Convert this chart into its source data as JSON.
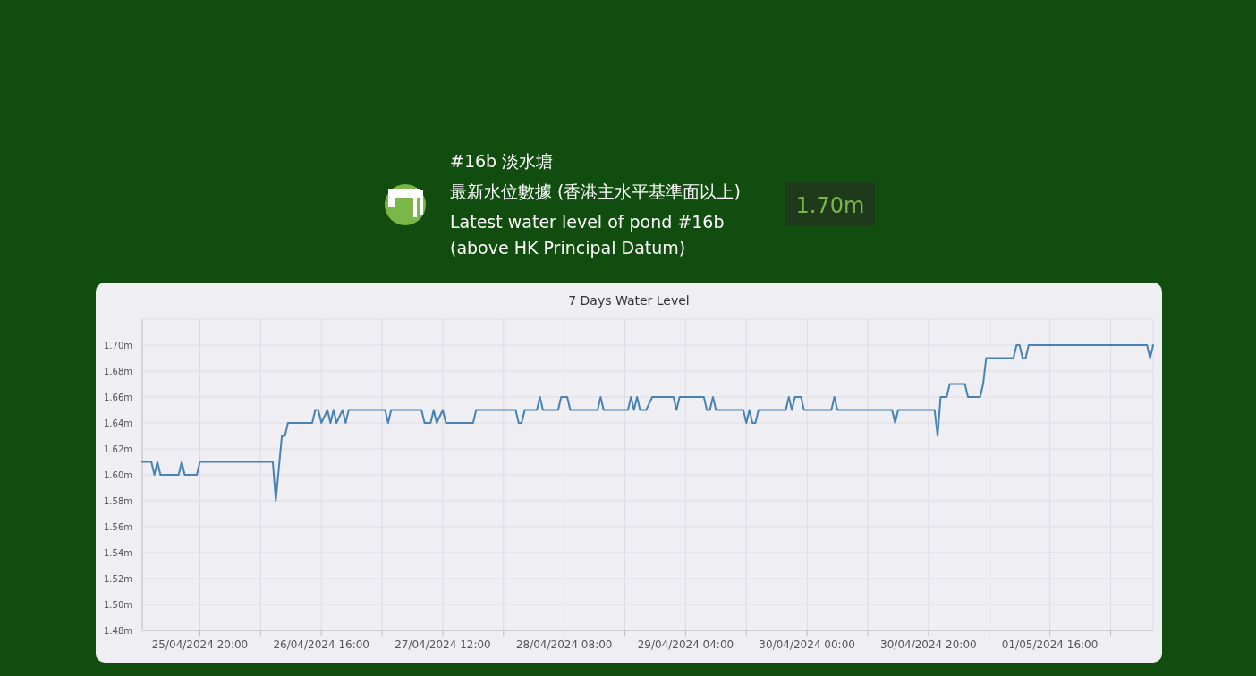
{
  "chart_data": [
    {
      "type": "other",
      "title": "#16b 淡水塘",
      "subtitle": "最新水位數據 (香港主水平基準面以上)",
      "annotations": [
        "Latest water level of pond #16b",
        "(above HK Principal Datum)",
        "1.70m"
      ]
    },
    {
      "type": "line",
      "title": "7 Days Water Level",
      "x": [
        "2024-04-25T10:30",
        "2024-04-25T12:00",
        "2024-04-25T12:30",
        "2024-04-25T13:00",
        "2024-04-25T13:30",
        "2024-04-25T16:30",
        "2024-04-25T17:00",
        "2024-04-25T17:30",
        "2024-04-25T19:30",
        "2024-04-25T20:00",
        "2024-04-26T08:00",
        "2024-04-26T08:30",
        "2024-04-26T09:30",
        "2024-04-26T10:00",
        "2024-04-26T10:30",
        "2024-04-26T14:30",
        "2024-04-26T15:00",
        "2024-04-26T15:30",
        "2024-04-26T16:00",
        "2024-04-26T17:00",
        "2024-04-26T17:30",
        "2024-04-26T18:00",
        "2024-04-26T18:30",
        "2024-04-26T19:30",
        "2024-04-26T20:00",
        "2024-04-26T20:30",
        "2024-04-27T02:30",
        "2024-04-27T03:00",
        "2024-04-27T03:30",
        "2024-04-27T08:30",
        "2024-04-27T09:00",
        "2024-04-27T10:00",
        "2024-04-27T10:30",
        "2024-04-27T11:00",
        "2024-04-27T12:00",
        "2024-04-27T12:30",
        "2024-04-27T17:00",
        "2024-04-27T17:30",
        "2024-04-28T00:00",
        "2024-04-28T00:30",
        "2024-04-28T01:00",
        "2024-04-28T01:30",
        "2024-04-28T03:30",
        "2024-04-28T04:00",
        "2024-04-28T04:30",
        "2024-04-28T07:00",
        "2024-04-28T07:30",
        "2024-04-28T08:30",
        "2024-04-28T09:00",
        "2024-04-28T13:30",
        "2024-04-28T14:00",
        "2024-04-28T14:30",
        "2024-04-28T18:30",
        "2024-04-28T19:00",
        "2024-04-28T19:30",
        "2024-04-28T20:00",
        "2024-04-28T20:30",
        "2024-04-28T21:30",
        "2024-04-28T22:30",
        "2024-04-29T02:00",
        "2024-04-29T02:30",
        "2024-04-29T03:00",
        "2024-04-29T07:00",
        "2024-04-29T07:30",
        "2024-04-29T08:00",
        "2024-04-29T08:30",
        "2024-04-29T09:00",
        "2024-04-29T13:30",
        "2024-04-29T14:00",
        "2024-04-29T14:30",
        "2024-04-29T15:00",
        "2024-04-29T15:30",
        "2024-04-29T16:00",
        "2024-04-29T20:30",
        "2024-04-29T21:00",
        "2024-04-29T21:30",
        "2024-04-29T22:00",
        "2024-04-29T23:00",
        "2024-04-29T23:30",
        "2024-04-30T04:00",
        "2024-04-30T04:30",
        "2024-04-30T05:00",
        "2024-04-30T14:00",
        "2024-04-30T14:30",
        "2024-04-30T15:00",
        "2024-04-30T21:00",
        "2024-04-30T21:30",
        "2024-04-30T22:00",
        "2024-04-30T23:00",
        "2024-04-30T23:30",
        "2024-05-01T02:00",
        "2024-05-01T02:30",
        "2024-05-01T04:30",
        "2024-05-01T05:00",
        "2024-05-01T05:30",
        "2024-05-01T10:00",
        "2024-05-01T10:30",
        "2024-05-01T11:00",
        "2024-05-01T11:30",
        "2024-05-01T12:00",
        "2024-05-01T12:30",
        "2024-05-02T08:00",
        "2024-05-02T08:30",
        "2024-05-02T09:00"
      ],
      "series": [
        {
          "color": "#4682b4",
          "values": [
            1.61,
            1.61,
            1.6,
            1.61,
            1.6,
            1.6,
            1.61,
            1.6,
            1.6,
            1.61,
            1.61,
            1.58,
            1.63,
            1.63,
            1.64,
            1.64,
            1.65,
            1.65,
            1.64,
            1.65,
            1.64,
            1.65,
            1.64,
            1.65,
            1.64,
            1.65,
            1.65,
            1.64,
            1.65,
            1.65,
            1.64,
            1.64,
            1.65,
            1.64,
            1.65,
            1.64,
            1.64,
            1.65,
            1.65,
            1.64,
            1.64,
            1.65,
            1.65,
            1.66,
            1.65,
            1.65,
            1.66,
            1.66,
            1.65,
            1.65,
            1.66,
            1.65,
            1.65,
            1.66,
            1.65,
            1.66,
            1.65,
            1.65,
            1.66,
            1.66,
            1.65,
            1.66,
            1.66,
            1.65,
            1.65,
            1.66,
            1.65,
            1.65,
            1.64,
            1.65,
            1.64,
            1.64,
            1.65,
            1.65,
            1.66,
            1.65,
            1.66,
            1.66,
            1.65,
            1.65,
            1.66,
            1.65,
            1.65,
            1.64,
            1.65,
            1.65,
            1.63,
            1.66,
            1.66,
            1.67,
            1.67,
            1.66,
            1.66,
            1.67,
            1.69,
            1.69,
            1.7,
            1.7,
            1.69,
            1.69,
            1.7,
            1.7,
            1.69,
            1.7
          ]
        }
      ],
      "xlim": [
        "2024-04-25T10:30",
        "2024-05-02T09:00"
      ],
      "xticks": [
        {
          "value": "2024-04-25T20:00",
          "label": "25/04/2024 20:00"
        },
        {
          "value": "2024-04-26T06:00",
          "label": null
        },
        {
          "value": "2024-04-26T16:00",
          "label": "26/04/2024 16:00"
        },
        {
          "value": "2024-04-27T02:00",
          "label": null
        },
        {
          "value": "2024-04-27T12:00",
          "label": "27/04/2024 12:00"
        },
        {
          "value": "2024-04-27T22:00",
          "label": null
        },
        {
          "value": "2024-04-28T08:00",
          "label": "28/04/2024 08:00"
        },
        {
          "value": "2024-04-28T18:00",
          "label": null
        },
        {
          "value": "2024-04-29T04:00",
          "label": "29/04/2024 04:00"
        },
        {
          "value": "2024-04-29T14:00",
          "label": null
        },
        {
          "value": "2024-04-30T00:00",
          "label": "30/04/2024 00:00"
        },
        {
          "value": "2024-04-30T10:00",
          "label": null
        },
        {
          "value": "2024-04-30T20:00",
          "label": "30/04/2024 20:00"
        },
        {
          "value": "2024-05-01T06:00",
          "label": null
        },
        {
          "value": "2024-05-01T16:00",
          "label": "01/05/2024 16:00"
        },
        {
          "value": "2024-05-02T02:00",
          "label": null
        }
      ],
      "ylim": [
        1.48,
        1.72
      ],
      "yticks": [
        {
          "value": 1.48,
          "label": "1.48m"
        },
        {
          "value": 1.5,
          "label": "1.50m"
        },
        {
          "value": 1.52,
          "label": "1.52m"
        },
        {
          "value": 1.54,
          "label": "1.54m"
        },
        {
          "value": 1.56,
          "label": "1.56m"
        },
        {
          "value": 1.58,
          "label": "1.58m"
        },
        {
          "value": 1.6,
          "label": "1.60m"
        },
        {
          "value": 1.62,
          "label": "1.62m"
        },
        {
          "value": 1.64,
          "label": "1.64m"
        },
        {
          "value": 1.66,
          "label": "1.66m"
        },
        {
          "value": 1.68,
          "label": "1.68m"
        },
        {
          "value": 1.7,
          "label": "1.70m"
        }
      ],
      "grid": true
    }
  ]
}
